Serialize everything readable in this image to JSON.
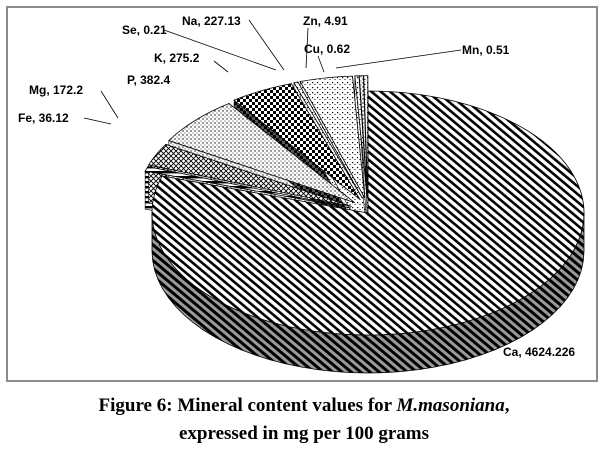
{
  "chart_data": {
    "type": "pie",
    "title": "",
    "categories": [
      "Ca",
      "Fe",
      "Mg",
      "P",
      "K",
      "Se",
      "Na",
      "Zn",
      "Cu",
      "Mn"
    ],
    "values": [
      4624.226,
      36.12,
      172.2,
      382.4,
      275.2,
      0.21,
      227.13,
      4.91,
      0.62,
      0.51
    ],
    "labels": [
      "Ca, 4624.226",
      "Fe, 36.12",
      "Mg, 172.2",
      "P, 382.4",
      "K, 275.2",
      "Se, 0.21",
      "Na, 227.13",
      "Zn, 4.91",
      "Cu, 0.62",
      "Mn, 0.51"
    ],
    "style": "3d-pie, exploded, monochrome hatch patterns"
  },
  "caption": {
    "line1_prefix": "Figure 6: Mineral content values for ",
    "line1_species": "M.masoniana",
    "line1_suffix": ",",
    "line2": "expressed in mg per 100 grams"
  }
}
